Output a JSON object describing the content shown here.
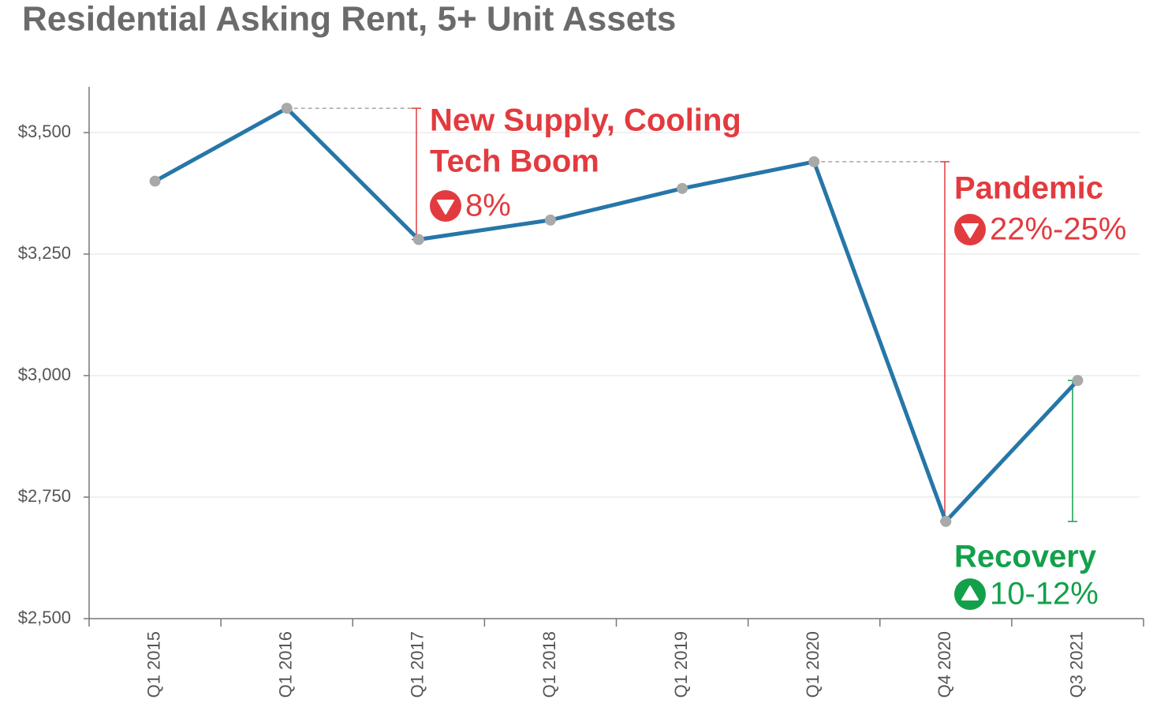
{
  "chart_data": {
    "type": "line",
    "title": "Residential Asking Rent, 5+ Unit Assets",
    "categories": [
      "Q1 2015",
      "Q1 2016",
      "Q1 2017",
      "Q1 2018",
      "Q1 2019",
      "Q1 2020",
      "Q4 2020",
      "Q3 2021"
    ],
    "series": [
      {
        "name": "Residential Asking Rent",
        "color": "#2677a7",
        "values": [
          3400,
          3550,
          3280,
          3320,
          3385,
          3440,
          2700,
          2990
        ]
      }
    ],
    "marker_color": "#a9a9a9",
    "ylim": [
      2500,
      3600
    ],
    "yticks": [
      {
        "value": 2500,
        "label": "$2,500"
      },
      {
        "value": 2750,
        "label": "$2,750"
      },
      {
        "value": 3000,
        "label": "$3,000"
      },
      {
        "value": 3250,
        "label": "$3,250"
      },
      {
        "value": 3500,
        "label": "$3,500"
      }
    ],
    "grid": true,
    "annotations": [
      {
        "lines": [
          "New Supply, Cooling",
          "Tech Boom"
        ],
        "change": "8%",
        "direction": "down",
        "color": "#e23b3f"
      },
      {
        "lines": [
          "Pandemic"
        ],
        "change": "22%-25%",
        "direction": "down",
        "color": "#e23b3f"
      },
      {
        "lines": [
          "Recovery"
        ],
        "change": "10-12%",
        "direction": "up",
        "color": "#13a04b"
      }
    ]
  }
}
